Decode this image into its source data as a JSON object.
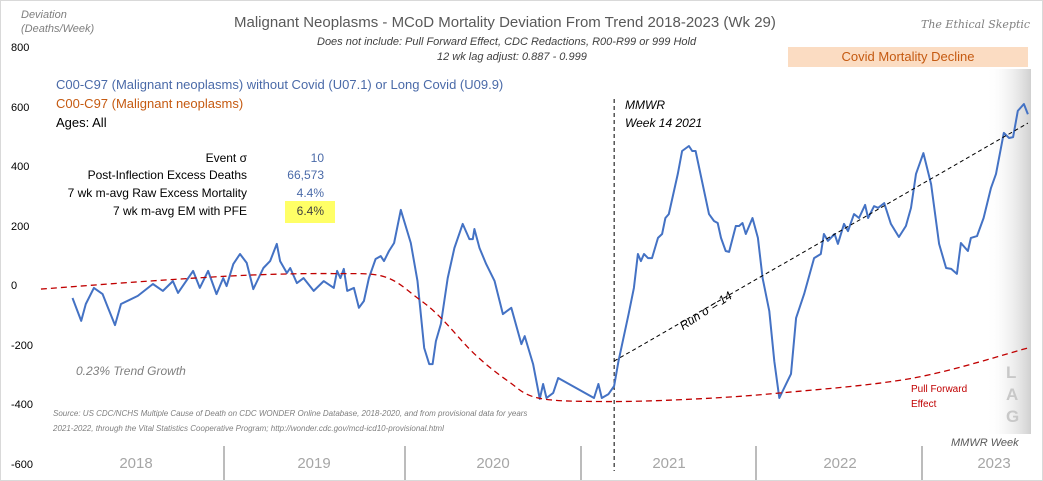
{
  "header": {
    "y_axis_title_line1": "Deviation",
    "y_axis_title_line2": "(Deaths/Week)",
    "title": "Malignant Neoplasms - MCoD Mortality Deviation  From Trend  2018-2023 (Wk 29)",
    "subtitle1": "Does not include: Pull Forward Effect,  CDC Redactions, R00-R99 or 999 Hold",
    "subtitle2": "12 wk lag adjust: 0.887 - 0.999",
    "brand": "The Ethical Skeptic"
  },
  "legend": {
    "series_blue": "C00-C97 (Malignant neoplasms) without Covid (U07.1) or Long Covid (U09.9)",
    "series_orange": "C00-C97 (Malignant neoplasms)",
    "ages": "Ages: All"
  },
  "stats": [
    {
      "label": "Event σ",
      "value": "10"
    },
    {
      "label": "Post-Inflection Excess Deaths",
      "value": "66,573"
    },
    {
      "label": "7 wk m-avg Raw Excess Mortality",
      "value": "4.4%"
    },
    {
      "label": "7 wk m-avg EM with PFE",
      "value": "6.4%"
    }
  ],
  "annotations": {
    "covid_decline": "Covid Mortality Decline",
    "mmwr_line1": "MMWR",
    "mmwr_line2": "Week 14 2021",
    "run_sigma": "Run σ = 14",
    "trend_growth": "0.23% Trend Growth",
    "pull_forward_line1": "Pull Forward",
    "pull_forward_line2": "Effect",
    "lag": [
      "L",
      "A",
      "G"
    ],
    "source_line1": "Source: US CDC/NCHS Multiple Cause of Death on CDC WONDER Online Database, 2018-2020, and from provisional data for years",
    "source_line2": "2021-2022, through the Vital Statistics Cooperative Program; http://wonder.cdc.gov/mcd-icd10-provisional.html",
    "x_axis_title": "MMWR Week"
  },
  "colors": {
    "blue": "#4472c4",
    "red_dashed": "#c00000",
    "orange": "#c55a11",
    "highlight": "#ffff66",
    "covid_box": "#fbdcc2"
  },
  "chart_data": {
    "type": "line",
    "title": "Malignant Neoplasms - MCoD Mortality Deviation  From Trend  2018-2023 (Wk 29)",
    "xlabel": "MMWR Week",
    "ylabel": "Deviation (Deaths/Week)",
    "ylim": [
      -600,
      800
    ],
    "yticks": [
      "800",
      "600",
      "400",
      "200",
      "0",
      "-200",
      "-400",
      "-600"
    ],
    "ytick_values": [
      800,
      600,
      400,
      200,
      0,
      -200,
      -400,
      -600
    ],
    "x_unit": "weeks since start of 2018",
    "xlim": [
      -2.4,
      295
    ],
    "categories": [
      "2018",
      "2019",
      "2020",
      "2021",
      "2022",
      "2023"
    ],
    "category_bounds": [
      0,
      52,
      106,
      158,
      211,
      261
    ],
    "inflection_week": 168.7,
    "series": [
      {
        "name": "C00-C97 (Malignant neoplasms) without Covid (U07.1) or Long Covid (U09.9)",
        "style": "solid",
        "points": [
          [
            7,
            -37
          ],
          [
            9.6,
            -114
          ],
          [
            11,
            -57
          ],
          [
            13.4,
            -3
          ],
          [
            16,
            -24
          ],
          [
            17.6,
            -70
          ],
          [
            19.7,
            -128
          ],
          [
            21.5,
            -57
          ],
          [
            26.5,
            -30
          ],
          [
            31,
            10
          ],
          [
            34,
            -13
          ],
          [
            37,
            20
          ],
          [
            38.5,
            -20
          ],
          [
            43,
            54
          ],
          [
            45,
            -3
          ],
          [
            47.5,
            54
          ],
          [
            50,
            -24
          ],
          [
            52,
            30
          ],
          [
            53,
            3
          ],
          [
            55,
            77
          ],
          [
            57,
            111
          ],
          [
            59,
            81
          ],
          [
            61,
            -7
          ],
          [
            64,
            64
          ],
          [
            66,
            87
          ],
          [
            68,
            145
          ],
          [
            69,
            87
          ],
          [
            71,
            47
          ],
          [
            72,
            64
          ],
          [
            74,
            13
          ],
          [
            76,
            30
          ],
          [
            79,
            -13
          ],
          [
            82,
            20
          ],
          [
            85,
            -3
          ],
          [
            86,
            54
          ],
          [
            87,
            30
          ],
          [
            88,
            61
          ],
          [
            89,
            -13
          ],
          [
            91,
            -3
          ],
          [
            92.5,
            -70
          ],
          [
            94,
            -47
          ],
          [
            95.5,
            30
          ],
          [
            97.5,
            94
          ],
          [
            99,
            104
          ],
          [
            100,
            87
          ],
          [
            101.5,
            121
          ],
          [
            103,
            148
          ],
          [
            105,
            259
          ],
          [
            108,
            148
          ],
          [
            110,
            20
          ],
          [
            112,
            -205
          ],
          [
            113.5,
            -259
          ],
          [
            114.5,
            -259
          ],
          [
            115.5,
            -182
          ],
          [
            117,
            -124
          ],
          [
            119,
            30
          ],
          [
            121,
            131
          ],
          [
            123.5,
            212
          ],
          [
            125.5,
            161
          ],
          [
            126.5,
            161
          ],
          [
            127,
            195
          ],
          [
            128.5,
            131
          ],
          [
            130.5,
            77
          ],
          [
            133,
            20
          ],
          [
            135.5,
            -91
          ],
          [
            138,
            -70
          ],
          [
            141,
            -192
          ],
          [
            142,
            -165
          ],
          [
            144.5,
            -259
          ],
          [
            146.5,
            -376
          ],
          [
            147.5,
            -326
          ],
          [
            148.5,
            -373
          ],
          [
            150.5,
            -356
          ],
          [
            152,
            -306
          ],
          [
            162.7,
            -373
          ],
          [
            164,
            -326
          ],
          [
            165,
            -373
          ],
          [
            167,
            -360
          ],
          [
            168.7,
            -333
          ],
          [
            170,
            -249
          ],
          [
            173,
            -91
          ],
          [
            174.6,
            -3
          ],
          [
            175.8,
            111
          ],
          [
            176.7,
            87
          ],
          [
            177.6,
            111
          ],
          [
            178.8,
            97
          ],
          [
            180,
            97
          ],
          [
            181.8,
            165
          ],
          [
            183,
            178
          ],
          [
            184,
            232
          ],
          [
            185,
            245
          ],
          [
            187.7,
            380
          ],
          [
            189,
            457
          ],
          [
            191,
            474
          ],
          [
            192,
            457
          ],
          [
            193,
            457
          ],
          [
            197,
            245
          ],
          [
            198.5,
            222
          ],
          [
            199.6,
            215
          ],
          [
            200.6,
            165
          ],
          [
            202,
            121
          ],
          [
            203,
            118
          ],
          [
            205,
            205
          ],
          [
            206,
            205
          ],
          [
            207,
            215
          ],
          [
            208,
            178
          ],
          [
            210,
            232
          ],
          [
            211.6,
            165
          ],
          [
            213,
            30
          ],
          [
            215,
            -81
          ],
          [
            216.5,
            -249
          ],
          [
            218,
            -373
          ],
          [
            221.5,
            -292
          ],
          [
            223,
            -104
          ],
          [
            225.4,
            -24
          ],
          [
            228.4,
            97
          ],
          [
            230.4,
            111
          ],
          [
            231.3,
            178
          ],
          [
            232.5,
            155
          ],
          [
            234.5,
            178
          ],
          [
            235.5,
            145
          ],
          [
            237.3,
            212
          ],
          [
            238.5,
            188
          ],
          [
            240.3,
            245
          ],
          [
            241.8,
            232
          ],
          [
            243.6,
            276
          ],
          [
            244.5,
            232
          ],
          [
            246.3,
            272
          ],
          [
            247.5,
            266
          ],
          [
            249.3,
            282
          ],
          [
            251.3,
            212
          ],
          [
            253.7,
            168
          ],
          [
            255.8,
            205
          ],
          [
            257.3,
            266
          ],
          [
            258.8,
            380
          ],
          [
            261,
            450
          ],
          [
            263.3,
            346
          ],
          [
            265.7,
            145
          ],
          [
            267.8,
            64
          ],
          [
            269.3,
            61
          ],
          [
            271,
            44
          ],
          [
            272.2,
            148
          ],
          [
            274.3,
            121
          ],
          [
            275.2,
            165
          ],
          [
            277,
            171
          ],
          [
            279,
            232
          ],
          [
            281.2,
            333
          ],
          [
            282.7,
            380
          ],
          [
            285,
            518
          ],
          [
            286.6,
            501
          ],
          [
            287.8,
            504
          ],
          [
            289.2,
            592
          ],
          [
            291,
            615
          ],
          [
            292.2,
            581
          ]
        ]
      },
      {
        "name": "Pull Forward Effect trend",
        "style": "dashed-red",
        "points": [
          [
            -2.4,
            -7
          ],
          [
            30,
            20
          ],
          [
            60,
            40
          ],
          [
            85,
            45
          ],
          [
            100,
            35
          ],
          [
            110,
            -37
          ],
          [
            117,
            -104
          ],
          [
            127,
            -225
          ],
          [
            137,
            -316
          ],
          [
            146,
            -373
          ],
          [
            165,
            -385
          ],
          [
            190,
            -378
          ],
          [
            218.5,
            -356
          ],
          [
            258,
            -306
          ],
          [
            292.2,
            -205
          ]
        ]
      },
      {
        "name": "Run σ = 14 trend",
        "style": "dashed-black",
        "points": [
          [
            168.7,
            -249
          ],
          [
            292.2,
            551
          ]
        ]
      }
    ]
  }
}
